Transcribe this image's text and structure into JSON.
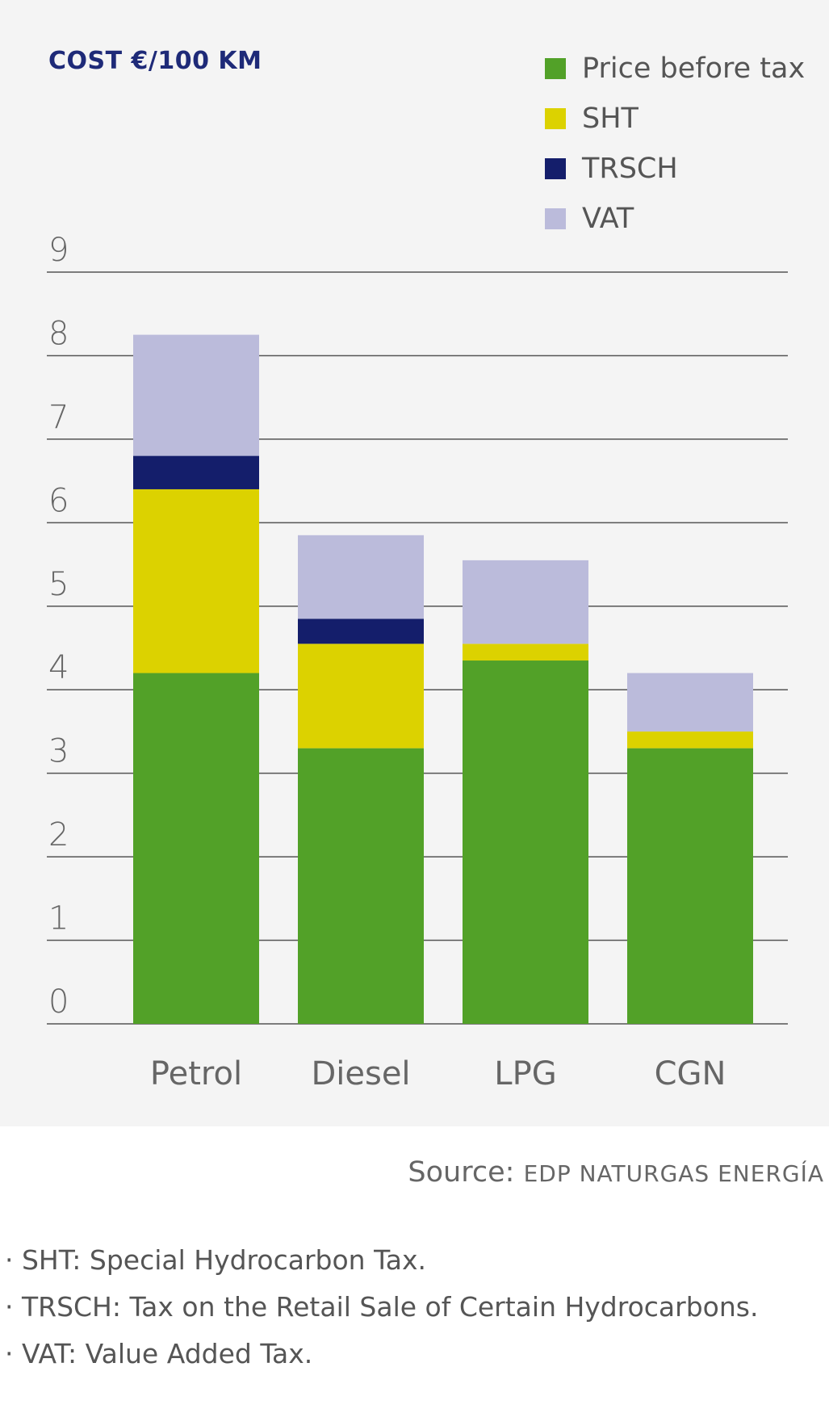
{
  "chart_data": {
    "type": "bar",
    "stacked": true,
    "title": "COST €/100 KM",
    "categories": [
      "Petrol",
      "Diesel",
      "LPG",
      "CGN"
    ],
    "series": [
      {
        "name": "Price before tax",
        "color": "#52a128",
        "values": [
          4.2,
          3.3,
          4.35,
          3.3
        ]
      },
      {
        "name": "SHT",
        "color": "#dcd200",
        "values": [
          2.2,
          1.25,
          0.2,
          0.2
        ]
      },
      {
        "name": "TRSCH",
        "color": "#141e6b",
        "values": [
          0.4,
          0.3,
          0,
          0
        ]
      },
      {
        "name": "VAT",
        "color": "#bbbbdb",
        "values": [
          1.45,
          1.0,
          1.0,
          0.7
        ]
      }
    ],
    "ylim": [
      0,
      9
    ],
    "yticks": [
      "0",
      "1",
      "2",
      "3",
      "4",
      "5",
      "6",
      "7",
      "8",
      "9"
    ],
    "grid": true,
    "legend_position": "top-right"
  },
  "source": {
    "prefix": "Source:",
    "org": "EDP NATURGAS ENERGÍA"
  },
  "notes": [
    "· SHT: Special Hydrocarbon Tax.",
    "· TRSCH: Tax on the Retail Sale of Certain Hydrocarbons.",
    "· VAT: Value Added Tax."
  ]
}
